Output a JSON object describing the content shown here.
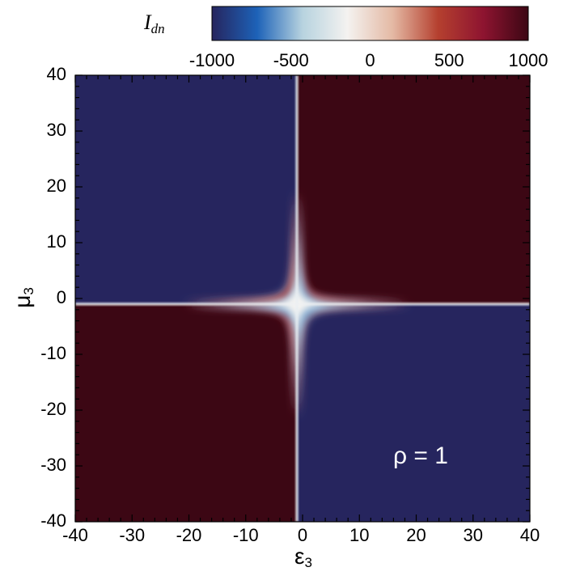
{
  "chart_data": {
    "type": "heatmap",
    "colorbar_label": "I",
    "colorbar_label_sub": "dn",
    "x_label": "ε",
    "x_label_sub": "3",
    "y_label": "μ",
    "y_label_sub": "3",
    "annotation": "ρ = 1",
    "x_edges": [
      -40,
      -1,
      40
    ],
    "y_edges": [
      -40,
      -1,
      40
    ],
    "z": [
      [
        1000,
        -1000
      ],
      [
        -1000,
        1000
      ]
    ],
    "zlim": [
      -1000,
      1000
    ],
    "zticks": [
      -1000,
      -500,
      0,
      500,
      1000
    ],
    "colormap": [
      "#26255e",
      "#1d62b8",
      "#b7d3df",
      "#f4f2f0",
      "#e4b9a4",
      "#b5402f",
      "#8e1430",
      "#3c0714"
    ],
    "xlim": [
      -40,
      40
    ],
    "ylim": [
      -40,
      40
    ],
    "xticks": [
      -40,
      -30,
      -20,
      -10,
      0,
      10,
      20,
      30,
      40
    ],
    "yticks": [
      -40,
      -30,
      -20,
      -10,
      0,
      10,
      20,
      30,
      40
    ]
  }
}
